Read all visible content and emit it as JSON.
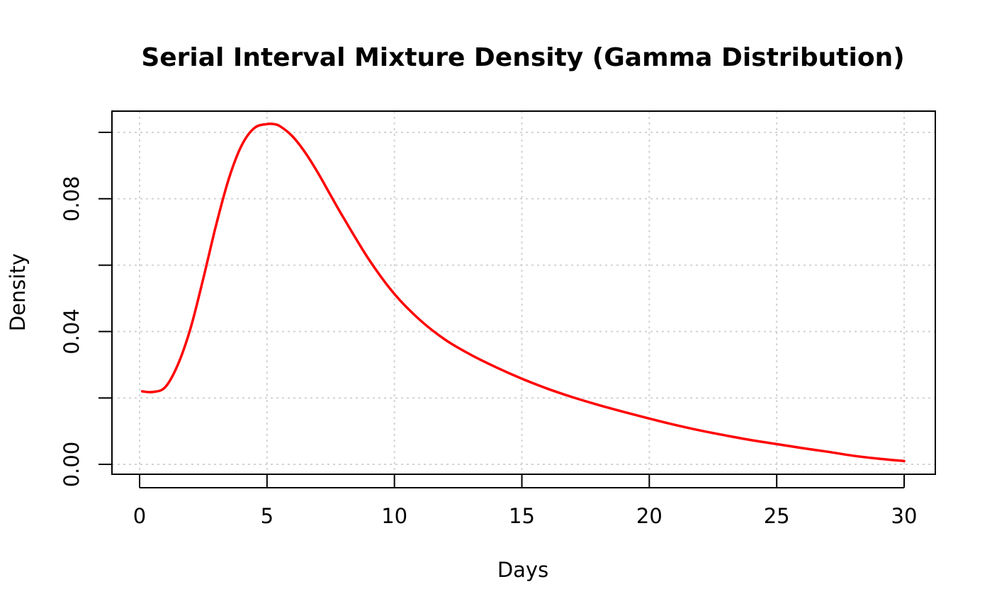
{
  "chart_data": {
    "type": "line",
    "title": "Serial Interval Mixture Density (Gamma Distribution)",
    "xlabel": "Days",
    "ylabel": "Density",
    "xlim": [
      0,
      30
    ],
    "ylim": [
      0,
      0.1
    ],
    "x_ticks": [
      0,
      5,
      10,
      15,
      20,
      25,
      30
    ],
    "x_tick_labels": [
      "0",
      "5",
      "10",
      "15",
      "20",
      "25",
      "30"
    ],
    "y_ticks": [
      0,
      0.02,
      0.04,
      0.06,
      0.08,
      0.1
    ],
    "y_tick_labels": [
      "0.00",
      "",
      "0.04",
      "",
      "0.08",
      ""
    ],
    "grid": true,
    "series": [
      {
        "color": "#ff0000",
        "x": [
          0.1,
          0.5,
          1,
          1.5,
          2,
          2.5,
          3,
          3.5,
          4,
          4.5,
          5,
          5.25,
          5.5,
          6,
          6.5,
          7,
          7.5,
          8,
          9,
          10,
          11,
          12,
          13,
          14,
          15,
          16,
          17,
          18,
          19,
          20,
          21,
          22,
          23,
          24,
          25,
          26,
          27,
          28,
          29,
          30
        ],
        "y": [
          0.022,
          0.0218,
          0.0232,
          0.03,
          0.041,
          0.056,
          0.072,
          0.086,
          0.096,
          0.1013,
          0.1025,
          0.1025,
          0.1019,
          0.0988,
          0.0939,
          0.0878,
          0.081,
          0.0743,
          0.0617,
          0.0513,
          0.0435,
          0.0375,
          0.033,
          0.0292,
          0.0258,
          0.0228,
          0.0202,
          0.0179,
          0.0158,
          0.0138,
          0.0119,
          0.0102,
          0.0087,
          0.0073,
          0.0061,
          0.0049,
          0.0038,
          0.0026,
          0.0017,
          0.001
        ]
      }
    ]
  }
}
